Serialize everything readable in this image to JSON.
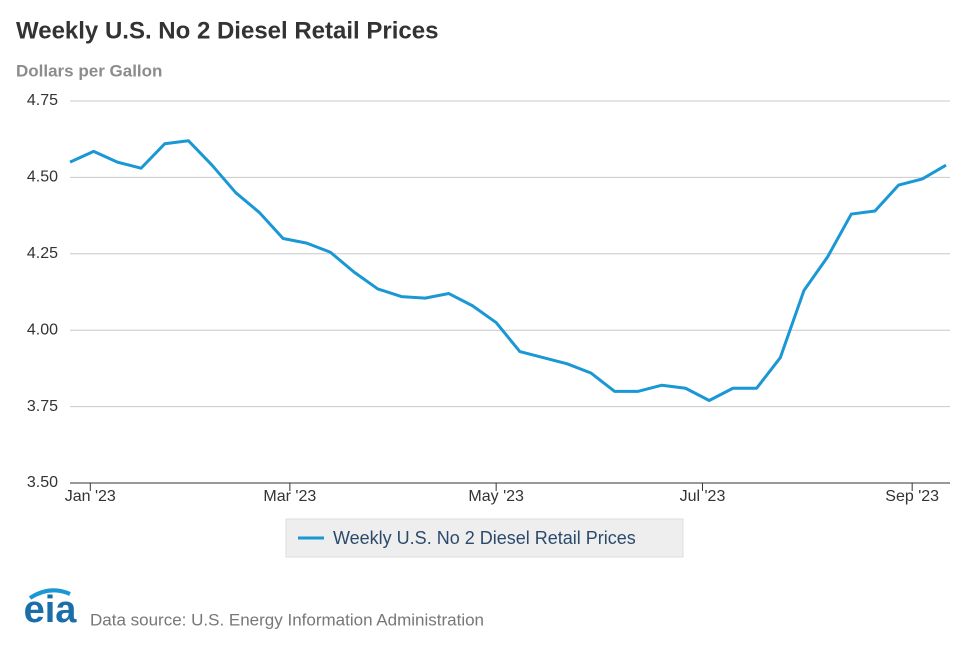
{
  "chart_data": {
    "type": "line",
    "title": "Weekly U.S. No 2 Diesel Retail Prices",
    "y_label": "Dollars per Gallon",
    "series": [
      {
        "name": "Weekly U.S. No 2 Diesel Retail Prices",
        "color": "#1a97d5",
        "values": [
          4.55,
          4.585,
          4.55,
          4.53,
          4.61,
          4.62,
          4.54,
          4.45,
          4.385,
          4.3,
          4.285,
          4.255,
          4.19,
          4.135,
          4.11,
          4.105,
          4.12,
          4.08,
          4.025,
          3.93,
          3.91,
          3.89,
          3.86,
          3.8,
          3.8,
          3.82,
          3.81,
          3.77,
          3.81,
          3.81,
          3.91,
          4.13,
          4.24,
          4.38,
          4.39,
          4.475,
          4.495,
          4.54
        ]
      }
    ],
    "xlim": [
      0,
      37
    ],
    "xticks": [
      {
        "value": 0.857,
        "label": "Jan '23"
      },
      {
        "value": 9.286,
        "label": "Mar '23"
      },
      {
        "value": 18,
        "label": "May '23"
      },
      {
        "value": 26.714,
        "label": "Jul '23"
      },
      {
        "value": 35.571,
        "label": "Sep '23"
      }
    ],
    "ylim": [
      3.5,
      4.75
    ],
    "yticks": [
      {
        "value": 3.5,
        "label": "3.50"
      },
      3.75,
      {
        "value": 4,
        "label": "4.00"
      },
      4.25,
      {
        "value": 4.5,
        "label": "4.50"
      },
      4.75
    ],
    "grid": true
  },
  "logo": "eia",
  "source": "Data source: U.S. Energy Information Administration"
}
